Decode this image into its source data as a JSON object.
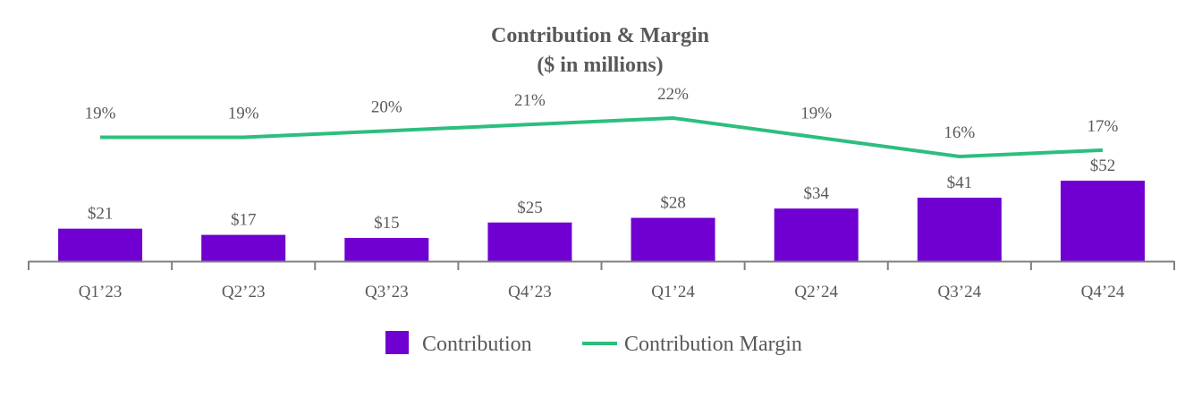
{
  "chart_data": {
    "type": "bar+line",
    "title": "Contribution & Margin",
    "subtitle": "($ in millions)",
    "categories": [
      "Q1’23",
      "Q2’23",
      "Q3’23",
      "Q4’23",
      "Q1’24",
      "Q2’24",
      "Q3’24",
      "Q4’24"
    ],
    "series": [
      {
        "name": "Contribution",
        "type": "bar",
        "color": "#6f00d1",
        "values": [
          21,
          17,
          15,
          25,
          28,
          34,
          41,
          52
        ],
        "labels": [
          "$21",
          "$17",
          "$15",
          "$25",
          "$28",
          "$34",
          "$41",
          "$52"
        ]
      },
      {
        "name": "Contribution Margin",
        "type": "line",
        "color": "#2dbe7e",
        "values": [
          19,
          19,
          20,
          21,
          22,
          19,
          16,
          17
        ],
        "labels": [
          "19%",
          "19%",
          "20%",
          "21%",
          "22%",
          "19%",
          "16%",
          "17%"
        ]
      }
    ],
    "legend_position": "bottom",
    "grid": false,
    "text_color": "#595959",
    "axis_color": "#808080"
  }
}
